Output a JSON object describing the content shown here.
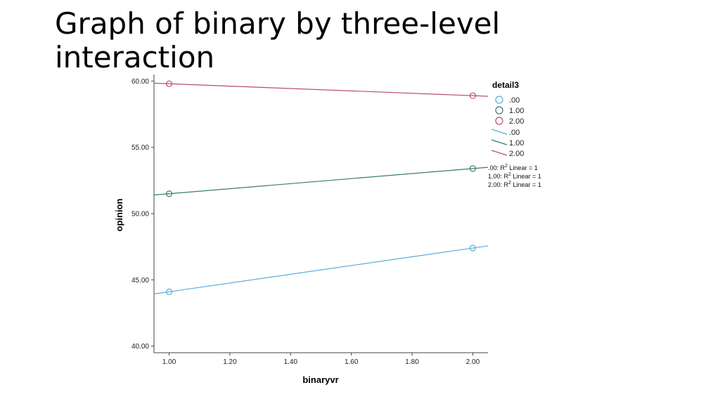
{
  "slide": {
    "title": "Graph of binary by three-level interaction"
  },
  "chart_data": {
    "type": "scatter",
    "xlabel": "binaryvr",
    "ylabel": "opinion",
    "xlim": [
      0.95,
      2.05
    ],
    "ylim": [
      39.5,
      60.5
    ],
    "xticks": [
      "1.00",
      "1.20",
      "1.40",
      "1.60",
      "1.80",
      "2.00"
    ],
    "yticks": [
      "40.00",
      "45.00",
      "50.00",
      "55.00",
      "60.00"
    ],
    "grid": false,
    "legend": {
      "title": "detail3",
      "placement": "right",
      "marker_labels": [
        ".00",
        "1.00",
        "2.00"
      ],
      "line_labels": [
        ".00",
        "1.00",
        "2.00"
      ],
      "fit_labels": [
        {
          "prefix": ".00: R",
          "sup": "2",
          "suffix": " Linear = 1"
        },
        {
          "prefix": "1.00: R",
          "sup": "2",
          "suffix": " Linear = 1"
        },
        {
          "prefix": "2.00: R",
          "sup": "2",
          "suffix": " Linear = 1"
        }
      ]
    },
    "series": [
      {
        "color": "#5aacdb",
        "x": [
          1.0,
          2.0
        ],
        "y": [
          44.1,
          47.4
        ]
      },
      {
        "color": "#3c7a72",
        "x": [
          1.0,
          2.0
        ],
        "y": [
          51.5,
          53.4
        ]
      },
      {
        "color": "#b94d6d",
        "x": [
          1.0,
          2.0
        ],
        "y": [
          59.8,
          58.9
        ]
      }
    ]
  }
}
